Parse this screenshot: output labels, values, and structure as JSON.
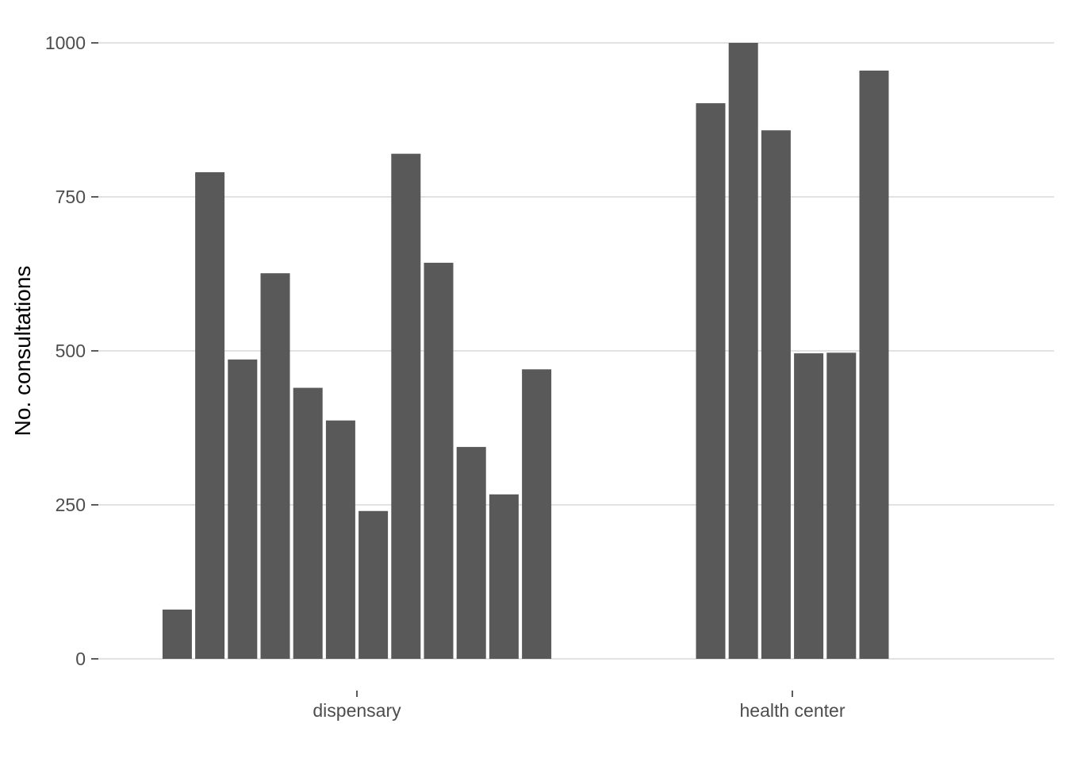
{
  "chart_data": {
    "type": "bar",
    "title": "",
    "xlabel": "",
    "ylabel": "No. consultations",
    "ylim": [
      0,
      1000
    ],
    "yticks": [
      0,
      250,
      500,
      750,
      1000
    ],
    "grid": "horizontal",
    "legend": "none",
    "bar_color": "#595959",
    "grid_color": "#d9d9d9",
    "groups": [
      {
        "category": "dispensary",
        "values": [
          80,
          790,
          486,
          626,
          440,
          387,
          240,
          820,
          643,
          344,
          267,
          470
        ]
      },
      {
        "category": "health center",
        "values": [
          902,
          1000,
          858,
          496,
          497,
          955
        ]
      }
    ]
  }
}
